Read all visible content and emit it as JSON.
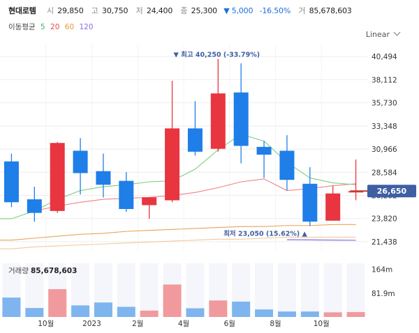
{
  "header": {
    "name": "현대로템",
    "open_label": "시",
    "open": "29,850",
    "high_label": "고",
    "high": "30,750",
    "low_label": "저",
    "low": "24,400",
    "close_label": "종",
    "close": "25,300",
    "change": "▼ 5,000",
    "change_pct": "-16.50%",
    "volume_label": "거",
    "volume": "85,678,603"
  },
  "moving_avg": {
    "label": "이동평균",
    "periods": [
      {
        "value": "5",
        "color": "#3cb371"
      },
      {
        "value": "20",
        "color": "#e84a4a"
      },
      {
        "value": "60",
        "color": "#e9963c"
      },
      {
        "value": "120",
        "color": "#8e6ae0"
      }
    ]
  },
  "scale_selector": "Linear",
  "colors": {
    "up": "#e8353f",
    "down": "#1f7ee8",
    "up_vol": "#f19a9d",
    "down_vol": "#7fb5ee",
    "grid": "#eeeeee",
    "current": "#3e5fa3"
  },
  "chart_data": {
    "type": "candlestick",
    "ylim": [
      20500,
      41800
    ],
    "y_ticks": [
      40494,
      38112,
      35730,
      33348,
      30966,
      28584,
      26202,
      23820,
      21438
    ],
    "y_tick_labels": [
      "40,494",
      "38,112",
      "35,730",
      "33,348",
      "30,966",
      "28,584",
      "26,202",
      "23,820",
      "21,438"
    ],
    "current_price": 26650,
    "current_price_label": "26,650",
    "max_annotation": "▼ 최고 40,250 (-33.79%)",
    "min_annotation": "최저 23,050 (15.62%) ▲",
    "candles": [
      {
        "o": 29700,
        "h": 30500,
        "l": 25000,
        "c": 25500
      },
      {
        "o": 25800,
        "h": 27100,
        "l": 23500,
        "c": 24400
      },
      {
        "o": 24600,
        "h": 31700,
        "l": 24400,
        "c": 31600
      },
      {
        "o": 30800,
        "h": 32100,
        "l": 26300,
        "c": 28500
      },
      {
        "o": 28700,
        "h": 30500,
        "l": 26000,
        "c": 27300
      },
      {
        "o": 27700,
        "h": 28600,
        "l": 24500,
        "c": 24800
      },
      {
        "o": 25200,
        "h": 26000,
        "l": 23800,
        "c": 26000
      },
      {
        "o": 25700,
        "h": 38000,
        "l": 25500,
        "c": 33100
      },
      {
        "o": 33100,
        "h": 35900,
        "l": 30300,
        "c": 30700
      },
      {
        "o": 31000,
        "h": 40250,
        "l": 30700,
        "c": 36700
      },
      {
        "o": 36800,
        "h": 39800,
        "l": 29500,
        "c": 31300
      },
      {
        "o": 31200,
        "h": 31800,
        "l": 28000,
        "c": 30400
      },
      {
        "o": 30800,
        "h": 32400,
        "l": 26700,
        "c": 27800
      },
      {
        "o": 27400,
        "h": 29100,
        "l": 23050,
        "c": 23500
      },
      {
        "o": 23600,
        "h": 27200,
        "l": 23600,
        "c": 26400
      },
      {
        "o": 26650,
        "h": 29900,
        "l": 25700,
        "c": 26650
      }
    ],
    "ma5": [
      23800,
      24600,
      25800,
      26700,
      27100,
      27300,
      27600,
      27700,
      28900,
      30900,
      32500,
      31800,
      29600,
      28000,
      27500,
      27300
    ],
    "ma20": [
      null,
      24600,
      25100,
      25500,
      25800,
      25900,
      26000,
      26200,
      26500,
      27000,
      27600,
      27900,
      26700,
      26900,
      27200,
      27400
    ],
    "ma60": [
      21600,
      21800,
      22000,
      22200,
      22300,
      22500,
      22600,
      22700,
      22800,
      22900,
      23000,
      23000,
      23100,
      23100,
      23200,
      23200
    ],
    "ma120": [
      20700,
      20900,
      21000,
      21100,
      21200,
      21300,
      21400,
      21500,
      21600,
      21700,
      21700,
      21800,
      21900,
      21900,
      21900,
      21900
    ],
    "ma120_partial": [
      null,
      null,
      null,
      null,
      null,
      null,
      null,
      null,
      null,
      null,
      null,
      null,
      21640,
      21620,
      21600,
      21580
    ],
    "volume_label": "거래량",
    "volume_total": "85,678,603",
    "volume_ylim": [
      0,
      185
    ],
    "volume_ticks": [
      164,
      81.9
    ],
    "volume_tick_labels": [
      "164m",
      "81.9m"
    ],
    "volume": [
      67,
      31,
      96,
      40,
      50,
      35,
      22,
      112,
      30,
      57,
      53,
      26,
      19,
      19,
      16,
      17
    ],
    "x_tick_labels": [
      "10월",
      "2023",
      "2월",
      "4월",
      "6월",
      "8월",
      "10월"
    ],
    "x_tick_index": [
      1.5,
      3.5,
      5.5,
      7.5,
      9.5,
      11.5,
      13.5
    ]
  }
}
